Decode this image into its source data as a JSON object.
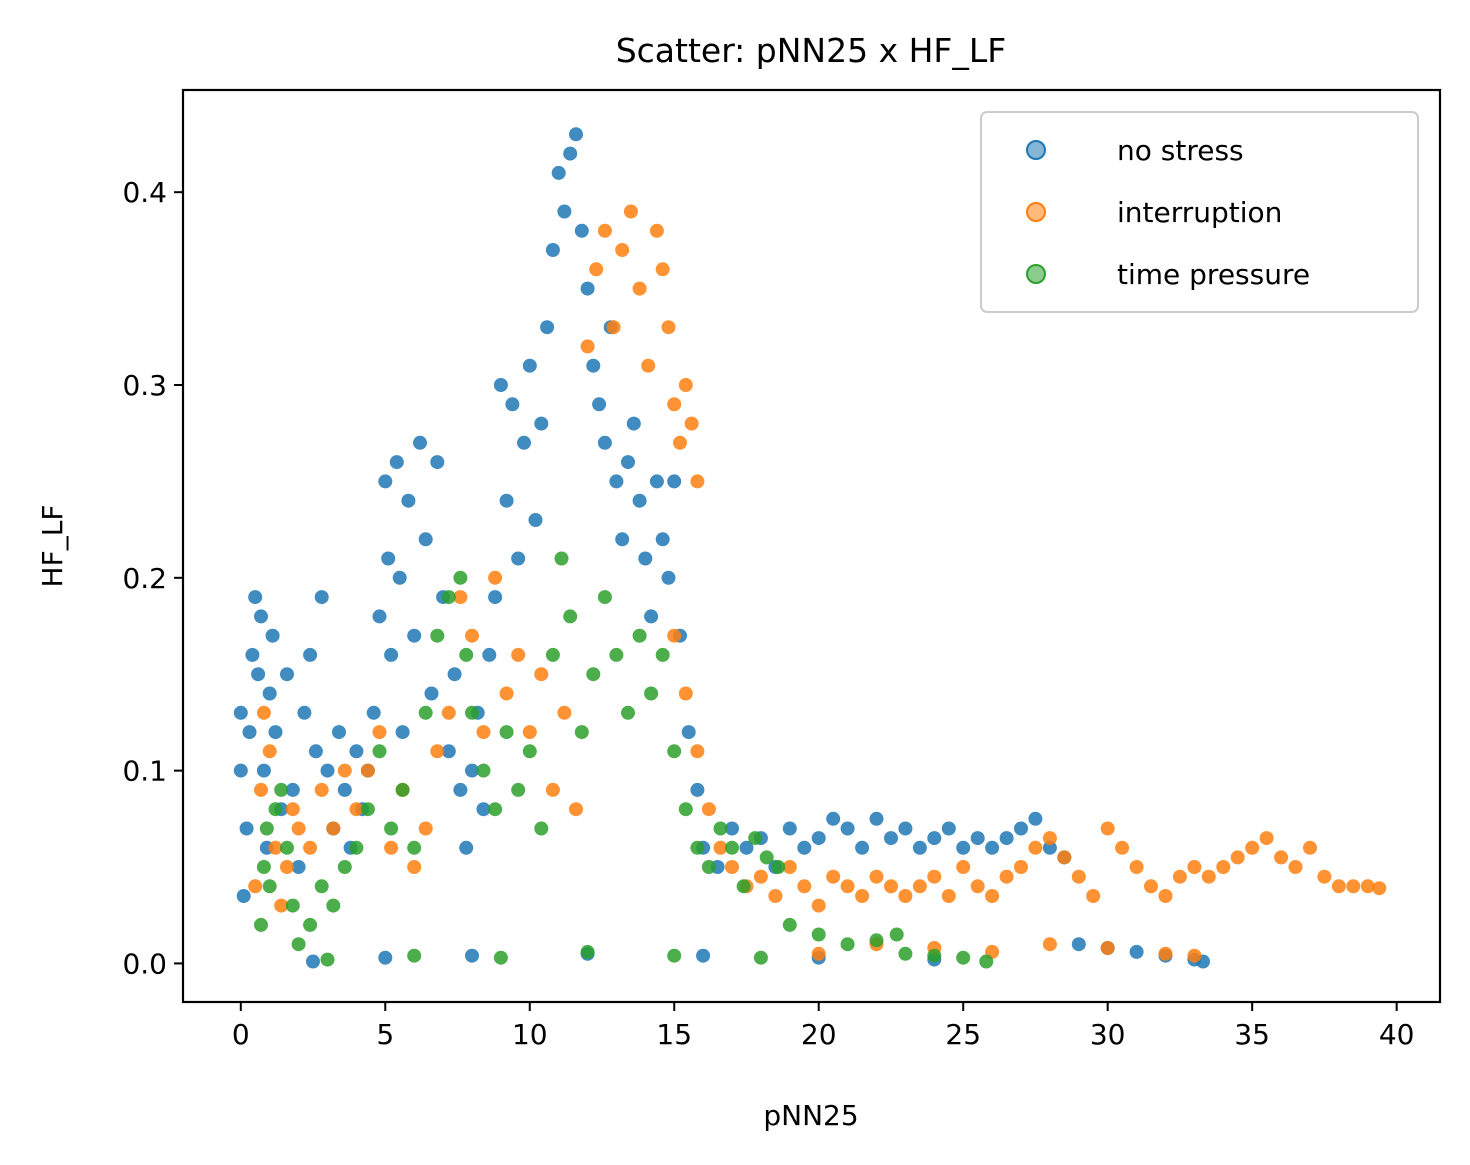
{
  "chart_data": {
    "type": "scatter",
    "title": "Scatter: pNN25 x HF_LF",
    "xlabel": "pNN25",
    "ylabel": "HF_LF",
    "xlim": [
      -2,
      41.5
    ],
    "ylim": [
      -0.02,
      0.453
    ],
    "x_ticks": [
      {
        "value": 0,
        "label": "0"
      },
      {
        "value": 5,
        "label": "5"
      },
      {
        "value": 10,
        "label": "10"
      },
      {
        "value": 15,
        "label": "15"
      },
      {
        "value": 20,
        "label": "20"
      },
      {
        "value": 25,
        "label": "25"
      },
      {
        "value": 30,
        "label": "30"
      },
      {
        "value": 35,
        "label": "35"
      },
      {
        "value": 40,
        "label": "40"
      }
    ],
    "y_ticks": [
      {
        "value": 0.0,
        "label": "0.0"
      },
      {
        "value": 0.1,
        "label": "0.1"
      },
      {
        "value": 0.2,
        "label": "0.2"
      },
      {
        "value": 0.3,
        "label": "0.3"
      },
      {
        "value": 0.4,
        "label": "0.4"
      }
    ],
    "grid": false,
    "legend_position": "top-right",
    "series": [
      {
        "name": "no stress",
        "color": "#1f77b4",
        "points": [
          [
            0.0,
            0.1
          ],
          [
            0.0,
            0.13
          ],
          [
            0.1,
            0.035
          ],
          [
            0.2,
            0.07
          ],
          [
            0.3,
            0.12
          ],
          [
            0.4,
            0.16
          ],
          [
            0.5,
            0.19
          ],
          [
            0.6,
            0.15
          ],
          [
            0.7,
            0.18
          ],
          [
            0.8,
            0.1
          ],
          [
            0.9,
            0.06
          ],
          [
            1.0,
            0.14
          ],
          [
            1.1,
            0.17
          ],
          [
            1.2,
            0.12
          ],
          [
            1.4,
            0.08
          ],
          [
            1.6,
            0.15
          ],
          [
            1.8,
            0.09
          ],
          [
            2.0,
            0.05
          ],
          [
            2.2,
            0.13
          ],
          [
            2.4,
            0.16
          ],
          [
            2.6,
            0.11
          ],
          [
            2.8,
            0.19
          ],
          [
            3.0,
            0.1
          ],
          [
            3.2,
            0.07
          ],
          [
            3.4,
            0.12
          ],
          [
            3.6,
            0.09
          ],
          [
            3.8,
            0.06
          ],
          [
            4.0,
            0.11
          ],
          [
            4.2,
            0.08
          ],
          [
            4.4,
            0.1
          ],
          [
            4.6,
            0.13
          ],
          [
            4.8,
            0.18
          ],
          [
            5.0,
            0.25
          ],
          [
            5.1,
            0.21
          ],
          [
            5.2,
            0.16
          ],
          [
            5.4,
            0.26
          ],
          [
            5.5,
            0.2
          ],
          [
            5.6,
            0.12
          ],
          [
            5.8,
            0.24
          ],
          [
            6.0,
            0.17
          ],
          [
            6.2,
            0.27
          ],
          [
            6.4,
            0.22
          ],
          [
            6.6,
            0.14
          ],
          [
            6.8,
            0.26
          ],
          [
            7.0,
            0.19
          ],
          [
            7.2,
            0.11
          ],
          [
            7.4,
            0.15
          ],
          [
            7.6,
            0.09
          ],
          [
            7.8,
            0.06
          ],
          [
            8.0,
            0.1
          ],
          [
            8.2,
            0.13
          ],
          [
            8.4,
            0.08
          ],
          [
            8.6,
            0.16
          ],
          [
            8.8,
            0.19
          ],
          [
            9.0,
            0.3
          ],
          [
            9.2,
            0.24
          ],
          [
            9.4,
            0.29
          ],
          [
            9.6,
            0.21
          ],
          [
            9.8,
            0.27
          ],
          [
            10.0,
            0.31
          ],
          [
            10.2,
            0.23
          ],
          [
            10.4,
            0.28
          ],
          [
            10.6,
            0.33
          ],
          [
            10.8,
            0.37
          ],
          [
            11.0,
            0.41
          ],
          [
            11.2,
            0.39
          ],
          [
            11.4,
            0.42
          ],
          [
            11.6,
            0.43
          ],
          [
            11.8,
            0.38
          ],
          [
            12.0,
            0.35
          ],
          [
            12.2,
            0.31
          ],
          [
            12.4,
            0.29
          ],
          [
            12.6,
            0.27
          ],
          [
            12.8,
            0.33
          ],
          [
            13.0,
            0.25
          ],
          [
            13.2,
            0.22
          ],
          [
            13.4,
            0.26
          ],
          [
            13.6,
            0.28
          ],
          [
            13.8,
            0.24
          ],
          [
            14.0,
            0.21
          ],
          [
            14.2,
            0.18
          ],
          [
            14.4,
            0.25
          ],
          [
            14.6,
            0.22
          ],
          [
            14.8,
            0.2
          ],
          [
            15.0,
            0.25
          ],
          [
            15.2,
            0.17
          ],
          [
            15.5,
            0.12
          ],
          [
            15.8,
            0.09
          ],
          [
            16.0,
            0.06
          ],
          [
            16.5,
            0.05
          ],
          [
            17.0,
            0.07
          ],
          [
            17.5,
            0.06
          ],
          [
            18.0,
            0.065
          ],
          [
            18.5,
            0.05
          ],
          [
            19.0,
            0.07
          ],
          [
            19.5,
            0.06
          ],
          [
            20.0,
            0.065
          ],
          [
            20.5,
            0.075
          ],
          [
            21.0,
            0.07
          ],
          [
            21.5,
            0.06
          ],
          [
            22.0,
            0.075
          ],
          [
            22.5,
            0.065
          ],
          [
            23.0,
            0.07
          ],
          [
            23.5,
            0.06
          ],
          [
            24.0,
            0.065
          ],
          [
            24.5,
            0.07
          ],
          [
            25.0,
            0.06
          ],
          [
            25.5,
            0.065
          ],
          [
            26.0,
            0.06
          ],
          [
            26.5,
            0.065
          ],
          [
            27.0,
            0.07
          ],
          [
            27.5,
            0.075
          ],
          [
            28.0,
            0.06
          ],
          [
            28.5,
            0.055
          ],
          [
            29.0,
            0.01
          ],
          [
            30.0,
            0.008
          ],
          [
            31.0,
            0.006
          ],
          [
            32.0,
            0.004
          ],
          [
            33.0,
            0.002
          ],
          [
            33.3,
            0.001
          ],
          [
            2.5,
            0.001
          ],
          [
            5.0,
            0.003
          ],
          [
            8.0,
            0.004
          ],
          [
            12.0,
            0.005
          ],
          [
            16.0,
            0.004
          ],
          [
            20.0,
            0.003
          ],
          [
            24.0,
            0.002
          ]
        ]
      },
      {
        "name": "interruption",
        "color": "#ff7f0e",
        "points": [
          [
            0.5,
            0.04
          ],
          [
            0.7,
            0.09
          ],
          [
            0.8,
            0.13
          ],
          [
            1.0,
            0.11
          ],
          [
            1.2,
            0.06
          ],
          [
            1.4,
            0.03
          ],
          [
            1.6,
            0.05
          ],
          [
            1.8,
            0.08
          ],
          [
            2.0,
            0.07
          ],
          [
            2.4,
            0.06
          ],
          [
            2.8,
            0.09
          ],
          [
            3.2,
            0.07
          ],
          [
            3.6,
            0.1
          ],
          [
            4.0,
            0.08
          ],
          [
            4.4,
            0.1
          ],
          [
            4.8,
            0.12
          ],
          [
            5.2,
            0.06
          ],
          [
            5.6,
            0.09
          ],
          [
            6.0,
            0.05
          ],
          [
            6.4,
            0.07
          ],
          [
            6.8,
            0.11
          ],
          [
            7.2,
            0.13
          ],
          [
            7.6,
            0.19
          ],
          [
            8.0,
            0.17
          ],
          [
            8.4,
            0.12
          ],
          [
            8.8,
            0.2
          ],
          [
            9.2,
            0.14
          ],
          [
            9.6,
            0.16
          ],
          [
            10.0,
            0.12
          ],
          [
            10.4,
            0.15
          ],
          [
            10.8,
            0.09
          ],
          [
            11.2,
            0.13
          ],
          [
            11.6,
            0.08
          ],
          [
            12.0,
            0.32
          ],
          [
            12.3,
            0.36
          ],
          [
            12.6,
            0.38
          ],
          [
            12.9,
            0.33
          ],
          [
            13.2,
            0.37
          ],
          [
            13.5,
            0.39
          ],
          [
            13.8,
            0.35
          ],
          [
            14.1,
            0.31
          ],
          [
            14.4,
            0.38
          ],
          [
            14.6,
            0.36
          ],
          [
            14.8,
            0.33
          ],
          [
            15.0,
            0.29
          ],
          [
            15.2,
            0.27
          ],
          [
            15.4,
            0.3
          ],
          [
            15.6,
            0.28
          ],
          [
            15.8,
            0.25
          ],
          [
            15.0,
            0.17
          ],
          [
            15.4,
            0.14
          ],
          [
            15.8,
            0.11
          ],
          [
            16.2,
            0.08
          ],
          [
            16.6,
            0.06
          ],
          [
            17.0,
            0.05
          ],
          [
            17.5,
            0.04
          ],
          [
            18.0,
            0.045
          ],
          [
            18.5,
            0.035
          ],
          [
            19.0,
            0.05
          ],
          [
            19.5,
            0.04
          ],
          [
            20.0,
            0.03
          ],
          [
            20.5,
            0.045
          ],
          [
            21.0,
            0.04
          ],
          [
            21.5,
            0.035
          ],
          [
            22.0,
            0.045
          ],
          [
            22.5,
            0.04
          ],
          [
            23.0,
            0.035
          ],
          [
            23.5,
            0.04
          ],
          [
            24.0,
            0.045
          ],
          [
            24.5,
            0.035
          ],
          [
            25.0,
            0.05
          ],
          [
            25.5,
            0.04
          ],
          [
            26.0,
            0.035
          ],
          [
            26.5,
            0.045
          ],
          [
            27.0,
            0.05
          ],
          [
            27.5,
            0.06
          ],
          [
            28.0,
            0.065
          ],
          [
            28.5,
            0.055
          ],
          [
            29.0,
            0.045
          ],
          [
            29.5,
            0.035
          ],
          [
            30.0,
            0.07
          ],
          [
            30.5,
            0.06
          ],
          [
            31.0,
            0.05
          ],
          [
            31.5,
            0.04
          ],
          [
            32.0,
            0.035
          ],
          [
            32.5,
            0.045
          ],
          [
            33.0,
            0.05
          ],
          [
            33.5,
            0.045
          ],
          [
            34.0,
            0.05
          ],
          [
            34.5,
            0.055
          ],
          [
            35.0,
            0.06
          ],
          [
            35.5,
            0.065
          ],
          [
            36.0,
            0.055
          ],
          [
            36.5,
            0.05
          ],
          [
            37.0,
            0.06
          ],
          [
            37.5,
            0.045
          ],
          [
            38.0,
            0.04
          ],
          [
            38.5,
            0.04
          ],
          [
            39.0,
            0.04
          ],
          [
            39.4,
            0.039
          ],
          [
            20.0,
            0.005
          ],
          [
            22.0,
            0.01
          ],
          [
            24.0,
            0.008
          ],
          [
            26.0,
            0.006
          ],
          [
            28.0,
            0.01
          ],
          [
            30.0,
            0.008
          ],
          [
            32.0,
            0.005
          ],
          [
            33.0,
            0.004
          ]
        ]
      },
      {
        "name": "time pressure",
        "color": "#2ca02c",
        "points": [
          [
            0.7,
            0.02
          ],
          [
            0.8,
            0.05
          ],
          [
            0.9,
            0.07
          ],
          [
            1.0,
            0.04
          ],
          [
            1.2,
            0.08
          ],
          [
            1.4,
            0.09
          ],
          [
            1.6,
            0.06
          ],
          [
            1.8,
            0.03
          ],
          [
            2.0,
            0.01
          ],
          [
            2.4,
            0.02
          ],
          [
            2.8,
            0.04
          ],
          [
            3.2,
            0.03
          ],
          [
            3.6,
            0.05
          ],
          [
            4.0,
            0.06
          ],
          [
            4.4,
            0.08
          ],
          [
            4.8,
            0.11
          ],
          [
            5.2,
            0.07
          ],
          [
            5.6,
            0.09
          ],
          [
            6.0,
            0.06
          ],
          [
            6.4,
            0.13
          ],
          [
            6.8,
            0.17
          ],
          [
            7.2,
            0.19
          ],
          [
            7.6,
            0.2
          ],
          [
            7.8,
            0.16
          ],
          [
            8.0,
            0.13
          ],
          [
            8.4,
            0.1
          ],
          [
            8.8,
            0.08
          ],
          [
            9.2,
            0.12
          ],
          [
            9.6,
            0.09
          ],
          [
            10.0,
            0.11
          ],
          [
            10.4,
            0.07
          ],
          [
            10.8,
            0.16
          ],
          [
            11.1,
            0.21
          ],
          [
            11.4,
            0.18
          ],
          [
            11.8,
            0.12
          ],
          [
            12.2,
            0.15
          ],
          [
            12.6,
            0.19
          ],
          [
            13.0,
            0.16
          ],
          [
            13.4,
            0.13
          ],
          [
            13.8,
            0.17
          ],
          [
            14.2,
            0.14
          ],
          [
            14.6,
            0.16
          ],
          [
            15.0,
            0.11
          ],
          [
            15.4,
            0.08
          ],
          [
            15.8,
            0.06
          ],
          [
            16.2,
            0.05
          ],
          [
            16.6,
            0.07
          ],
          [
            17.0,
            0.06
          ],
          [
            17.4,
            0.04
          ],
          [
            17.8,
            0.065
          ],
          [
            18.2,
            0.055
          ],
          [
            18.6,
            0.05
          ],
          [
            19.0,
            0.02
          ],
          [
            20.0,
            0.015
          ],
          [
            21.0,
            0.01
          ],
          [
            22.0,
            0.012
          ],
          [
            22.7,
            0.015
          ],
          [
            23.0,
            0.005
          ],
          [
            24.0,
            0.004
          ],
          [
            25.0,
            0.003
          ],
          [
            25.8,
            0.001
          ],
          [
            3.0,
            0.002
          ],
          [
            6.0,
            0.004
          ],
          [
            9.0,
            0.003
          ],
          [
            12.0,
            0.006
          ],
          [
            15.0,
            0.004
          ],
          [
            18.0,
            0.003
          ]
        ]
      }
    ]
  }
}
